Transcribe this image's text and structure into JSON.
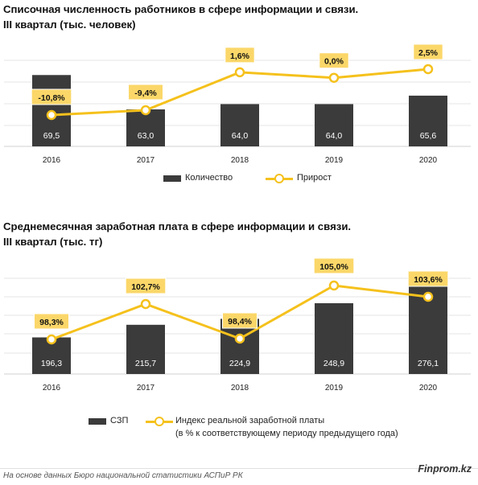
{
  "charts": [
    {
      "title_line1": "Списочная численность работников в сфере информации и связи.",
      "title_line2": "III квартал (тыс. человек)",
      "legend": {
        "bar": "Количество",
        "line": "Прирост"
      }
    },
    {
      "title_line1": "Среднемесячная заработная плата в сфере информации и связи.",
      "title_line2": "III квартал (тыс. тг)",
      "legend": {
        "bar": "СЗП",
        "line_1": "Индекс реальной заработной платы",
        "line_2": "(в % к соответствующему периоду предыдущего года)"
      }
    }
  ],
  "chart_data": [
    {
      "type": "bar",
      "title": "Списочная численность работников в сфере информации и связи. III квартал (тыс. человек)",
      "categories": [
        "2016",
        "2017",
        "2018",
        "2019",
        "2020"
      ],
      "series": [
        {
          "name": "Количество",
          "type": "bar",
          "values": [
            69.5,
            63.0,
            64.0,
            64.0,
            65.6
          ],
          "labels": [
            "69,5",
            "63,0",
            "64,0",
            "64,0",
            "65,6"
          ]
        },
        {
          "name": "Прирост",
          "type": "line",
          "axis": "secondary",
          "values": [
            -10.8,
            -9.4,
            1.6,
            0.0,
            2.5
          ],
          "labels": [
            "-10,8%",
            "-9,4%",
            "1,6%",
            "0,0%",
            "2,5%"
          ]
        }
      ],
      "colors": {
        "bar": "#3b3b3b",
        "line": "#f5c11c",
        "label_fill": "#fbd769"
      },
      "grid": true,
      "legend_position": "bottom"
    },
    {
      "type": "bar",
      "title": "Среднемесячная заработная плата в сфере информации и связи. III квартал (тыс. тг)",
      "categories": [
        "2016",
        "2017",
        "2018",
        "2019",
        "2020"
      ],
      "series": [
        {
          "name": "СЗП",
          "type": "bar",
          "values": [
            196.3,
            215.7,
            224.9,
            248.9,
            276.1
          ],
          "labels": [
            "196,3",
            "215,7",
            "224,9",
            "248,9",
            "276,1"
          ]
        },
        {
          "name": "Индекс реальной заработной платы",
          "type": "line",
          "axis": "secondary",
          "values": [
            98.3,
            102.7,
            98.4,
            105.0,
            103.6
          ],
          "labels": [
            "98,3%",
            "102,7%",
            "98,4%",
            "105,0%",
            "103,6%"
          ]
        }
      ],
      "colors": {
        "bar": "#3b3b3b",
        "line": "#f5c11c",
        "label_fill": "#fbd769"
      },
      "grid": true,
      "legend_position": "bottom"
    }
  ],
  "footer": {
    "source": "На основе данных Бюро национальной статистики АСПиР РК",
    "brand": "Finprom.kz"
  }
}
